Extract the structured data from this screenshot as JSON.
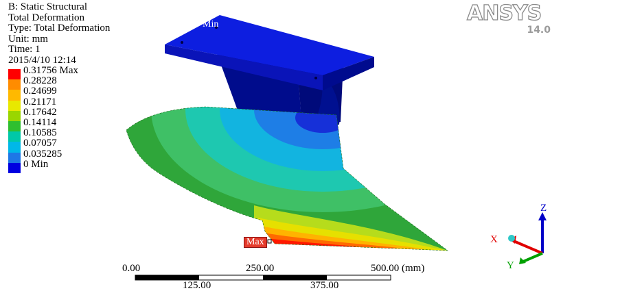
{
  "info": {
    "lines": [
      "B: Static Structural",
      "Total Deformation",
      "Type: Total Deformation",
      "Unit: mm",
      "Time: 1",
      "2015/4/10 12:14"
    ]
  },
  "legend": {
    "entries": [
      {
        "label": "0.31756 Max",
        "color": "#ff0000"
      },
      {
        "label": "0.28228",
        "color": "#ff8c00"
      },
      {
        "label": "0.24699",
        "color": "#ffb900"
      },
      {
        "label": "0.21171",
        "color": "#e8e800"
      },
      {
        "label": "0.17642",
        "color": "#9ad600"
      },
      {
        "label": "0.14114",
        "color": "#2fbf2f"
      },
      {
        "label": "0.10585",
        "color": "#00c8a8"
      },
      {
        "label": "0.07057",
        "color": "#00b8e8"
      },
      {
        "label": "0.035285",
        "color": "#1e78e6"
      },
      {
        "label": "0 Min",
        "color": "#0000e0"
      }
    ]
  },
  "logo": {
    "name": "ANSYS",
    "version": "14.0"
  },
  "model": {
    "min_label": "Min",
    "max_label": "Max"
  },
  "scale_bar": {
    "top_labels": [
      "0.00",
      "250.00",
      "500.00 (mm)"
    ],
    "bottom_labels": [
      "125.00",
      "375.00"
    ]
  },
  "triad": {
    "x": "X",
    "y": "Y",
    "z": "Z"
  },
  "colors": {
    "x_axis": "#e00000",
    "y_axis": "#00a000",
    "z_axis": "#0000c8"
  }
}
